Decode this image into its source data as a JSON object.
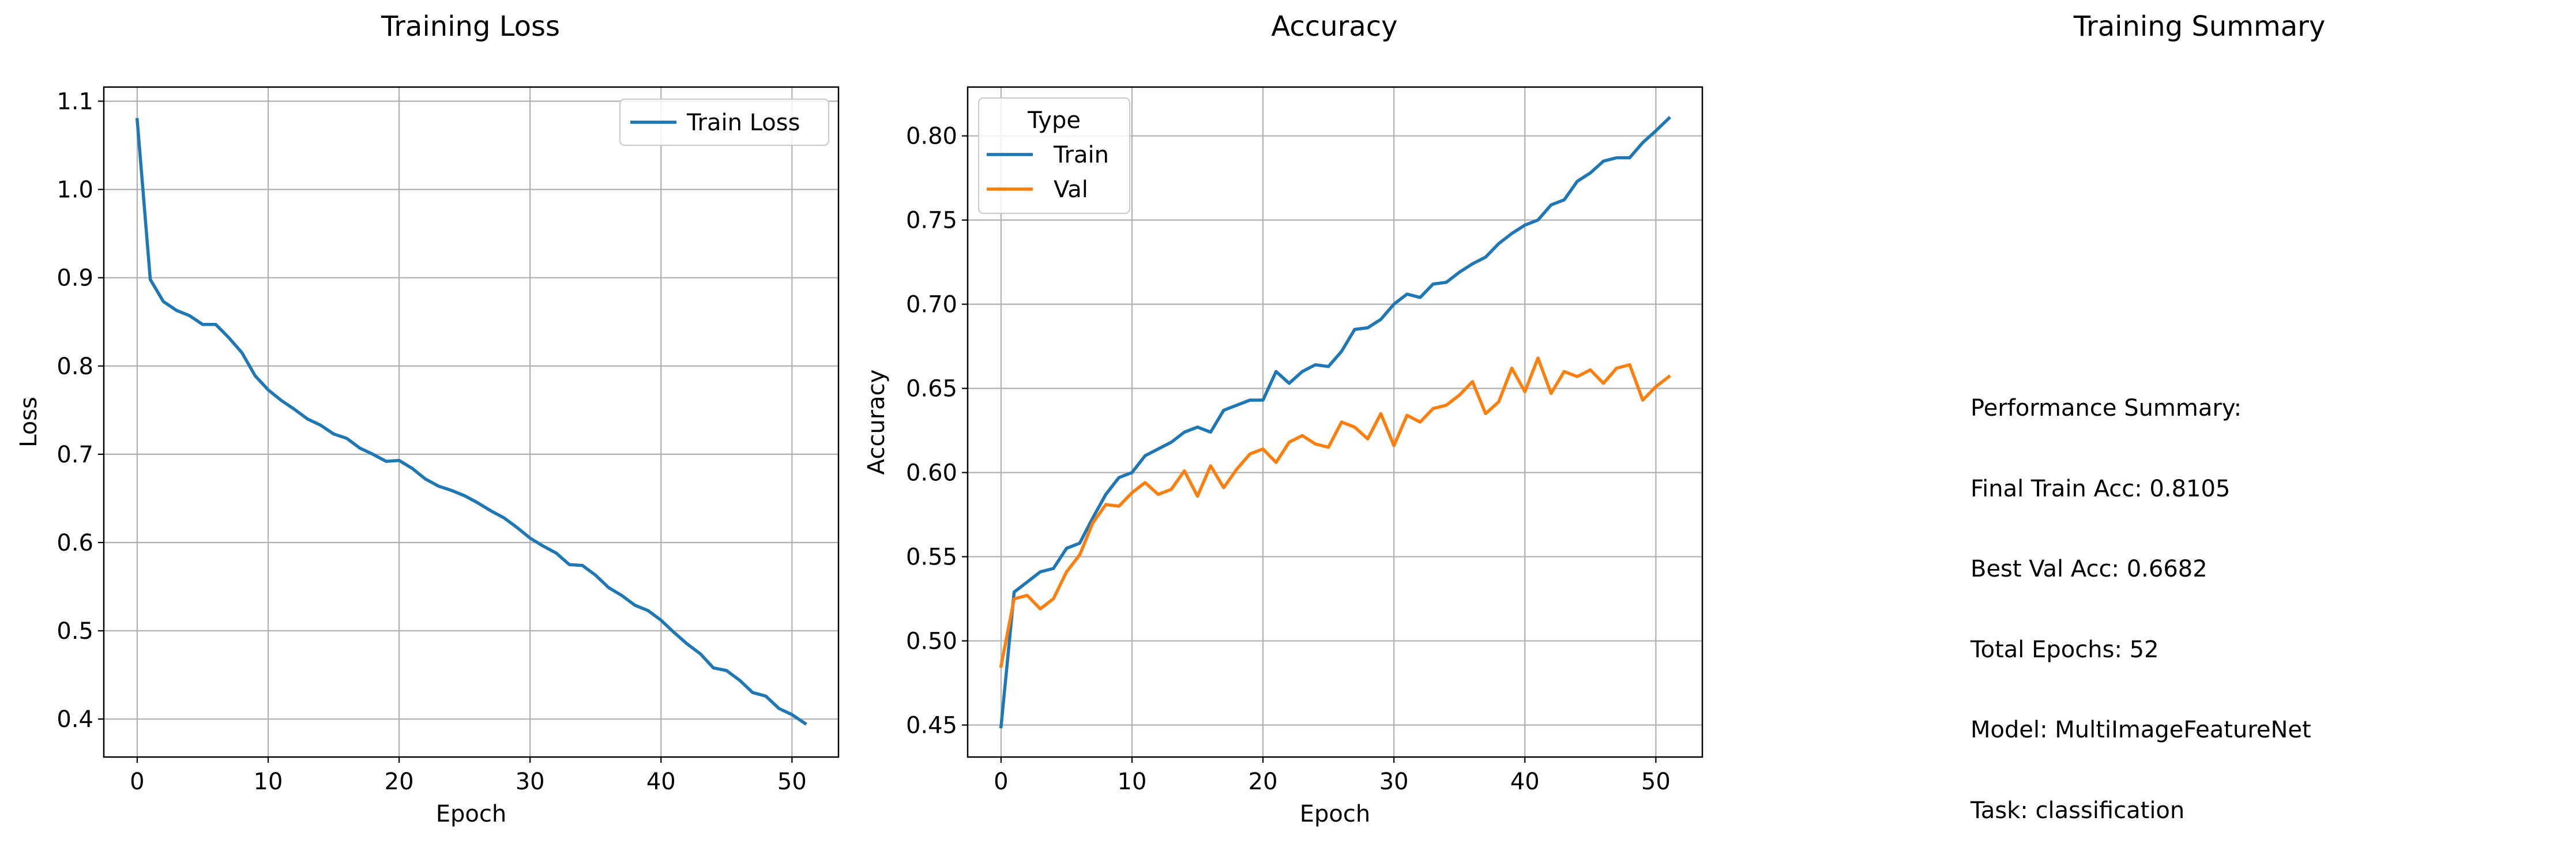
{
  "figure": {
    "summary_title": "Training Summary"
  },
  "summary": {
    "lines": [
      "Performance Summary:",
      "Final Train Acc: 0.8105",
      "Best Val Acc: 0.6682",
      "Total Epochs: 52",
      "Model: MultiImageFeatureNet",
      "Task: classification"
    ]
  },
  "chart_data": [
    {
      "type": "line",
      "title": "Training Loss",
      "xlabel": "Epoch",
      "ylabel": "Loss",
      "xlim": [
        -2.55,
        53.55
      ],
      "ylim": [
        0.357,
        1.116
      ],
      "xticks": [
        0,
        10,
        20,
        30,
        40,
        50
      ],
      "yticks": [
        0.4,
        0.5,
        0.6,
        0.7,
        0.8,
        0.9,
        1.0,
        1.1
      ],
      "grid": true,
      "legend": {
        "position": "upper right",
        "title": ""
      },
      "x": [
        0,
        1,
        2,
        3,
        4,
        5,
        6,
        7,
        8,
        9,
        10,
        11,
        12,
        13,
        14,
        15,
        16,
        17,
        18,
        19,
        20,
        21,
        22,
        23,
        24,
        25,
        26,
        27,
        28,
        29,
        30,
        31,
        32,
        33,
        34,
        35,
        36,
        37,
        38,
        39,
        40,
        41,
        42,
        43,
        44,
        45,
        46,
        47,
        48,
        49,
        50,
        51
      ],
      "series": [
        {
          "name": "Train Loss",
          "color": "#1f77b4",
          "values": [
            1.079,
            0.898,
            0.873,
            0.863,
            0.857,
            0.847,
            0.847,
            0.832,
            0.815,
            0.789,
            0.773,
            0.761,
            0.751,
            0.74,
            0.733,
            0.723,
            0.718,
            0.707,
            0.7,
            0.692,
            0.693,
            0.684,
            0.672,
            0.664,
            0.659,
            0.653,
            0.645,
            0.636,
            0.628,
            0.617,
            0.605,
            0.596,
            0.588,
            0.575,
            0.574,
            0.563,
            0.549,
            0.54,
            0.529,
            0.523,
            0.512,
            0.498,
            0.485,
            0.474,
            0.458,
            0.455,
            0.444,
            0.43,
            0.426,
            0.412,
            0.405,
            0.395
          ]
        }
      ]
    },
    {
      "type": "line",
      "title": "Accuracy",
      "xlabel": "Epoch",
      "ylabel": "Accuracy",
      "xlim": [
        -2.55,
        53.55
      ],
      "ylim": [
        0.431,
        0.829
      ],
      "xticks": [
        0,
        10,
        20,
        30,
        40,
        50
      ],
      "yticks": [
        0.45,
        0.5,
        0.55,
        0.6,
        0.65,
        0.7,
        0.75,
        0.8
      ],
      "grid": true,
      "legend": {
        "position": "upper left",
        "title": "Type"
      },
      "x": [
        0,
        1,
        2,
        3,
        4,
        5,
        6,
        7,
        8,
        9,
        10,
        11,
        12,
        13,
        14,
        15,
        16,
        17,
        18,
        19,
        20,
        21,
        22,
        23,
        24,
        25,
        26,
        27,
        28,
        29,
        30,
        31,
        32,
        33,
        34,
        35,
        36,
        37,
        38,
        39,
        40,
        41,
        42,
        43,
        44,
        45,
        46,
        47,
        48,
        49,
        50,
        51
      ],
      "series": [
        {
          "name": "Train",
          "color": "#1f77b4",
          "values": [
            0.449,
            0.529,
            0.535,
            0.541,
            0.543,
            0.555,
            0.558,
            0.573,
            0.587,
            0.597,
            0.6,
            0.61,
            0.614,
            0.618,
            0.624,
            0.627,
            0.624,
            0.637,
            0.64,
            0.643,
            0.643,
            0.66,
            0.653,
            0.66,
            0.664,
            0.663,
            0.672,
            0.685,
            0.686,
            0.691,
            0.7,
            0.706,
            0.704,
            0.712,
            0.713,
            0.719,
            0.724,
            0.728,
            0.736,
            0.742,
            0.747,
            0.75,
            0.759,
            0.762,
            0.773,
            0.778,
            0.785,
            0.787,
            0.787,
            0.796,
            0.803,
            0.8105
          ]
        },
        {
          "name": "Val",
          "color": "#ff7f0e",
          "values": [
            0.485,
            0.525,
            0.527,
            0.519,
            0.525,
            0.541,
            0.551,
            0.57,
            0.581,
            0.58,
            0.588,
            0.594,
            0.587,
            0.59,
            0.601,
            0.586,
            0.604,
            0.591,
            0.602,
            0.611,
            0.614,
            0.606,
            0.618,
            0.622,
            0.617,
            0.615,
            0.63,
            0.627,
            0.62,
            0.635,
            0.616,
            0.634,
            0.63,
            0.638,
            0.64,
            0.646,
            0.654,
            0.635,
            0.642,
            0.662,
            0.648,
            0.668,
            0.647,
            0.66,
            0.657,
            0.661,
            0.653,
            0.662,
            0.664,
            0.643,
            0.651,
            0.657
          ]
        }
      ]
    }
  ]
}
